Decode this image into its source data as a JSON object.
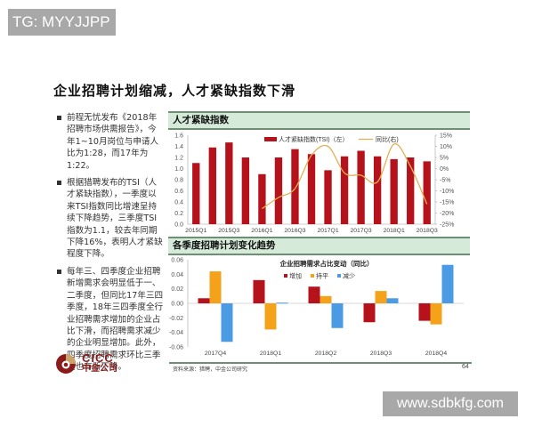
{
  "watermarks": {
    "top": "TG: MYYJJPP",
    "bottom": "www.sdbkfg.com"
  },
  "page": {
    "title": "企业招聘计划缩减，人才紧缺指数下滑",
    "bullets": [
      "前程无忧发布《2018年招聘市场供需报告》，今年1~10月岗位与申请人比为1:28，而17年为1:22。",
      "根据猎聘发布的TSI（人才紧缺指数），一季度以来TSI指数同比增速呈持续下降趋势，三季度TSI指数为1.1，较去年同期下降16%，表明人才紧缺程度下降。",
      "每年三、四季度企业招聘新增需求会明显低于一、二季度，但同比17年三四季度，18年三四季度全行业招聘需求增加的企业占比下滑，而招聘需求减少的企业明显增加。此外，四季度招聘需求环比三季度也有所下降。"
    ],
    "source": "资料来源：猎聘，中金公司研究",
    "page_number": "64",
    "logo": {
      "en": "CICC",
      "cn": "中金公司"
    }
  },
  "colors": {
    "red": "#b5121b",
    "orange": "#f5a21b",
    "blue": "#4a9be3",
    "line": "#e2b054",
    "panel_bg": "#d6ead9",
    "panel_border": "#6d8f73"
  },
  "chart_data": [
    {
      "type": "bar",
      "title": "人才紧缺指数",
      "categories": [
        "2015Q1",
        "2015Q2",
        "2015Q3",
        "2015Q4",
        "2016Q1",
        "2016Q2",
        "2016Q3",
        "2016Q4",
        "2017Q1",
        "2017Q2",
        "2017Q3",
        "2017Q4",
        "2018Q1",
        "2018Q2",
        "2018Q3"
      ],
      "x_tick_labels": [
        "2015Q1",
        "2015Q3",
        "2016Q1",
        "2016Q3",
        "2017Q1",
        "2017Q3",
        "2018Q1",
        "2018Q3"
      ],
      "series": [
        {
          "name": "人才紧缺指数(TSI)（左）",
          "type": "bar",
          "axis": "left",
          "values": [
            1.1,
            1.38,
            1.47,
            1.2,
            0.9,
            1.2,
            1.35,
            1.26,
            0.97,
            1.22,
            1.32,
            1.22,
            1.17,
            1.2,
            1.13
          ]
        },
        {
          "name": "同比(右)",
          "type": "line",
          "axis": "right",
          "unit": "%",
          "values": [
            null,
            null,
            null,
            null,
            -18,
            -13,
            -9,
            6,
            10,
            -2,
            -3,
            -6,
            11,
            1,
            -16
          ]
        }
      ],
      "y_left": {
        "ticks": [
          "1.6",
          "1.4",
          "1.2",
          "1.0",
          "0.8",
          "0.6",
          "0.4",
          "0.2",
          "0.0"
        ],
        "ylim": [
          0,
          1.6
        ]
      },
      "y_right": {
        "ticks": [
          "15%",
          "10%",
          "5%",
          "0%",
          "-5%",
          "-10%",
          "-15%",
          "-20%",
          "-25%"
        ],
        "ylim": [
          -25,
          15
        ]
      },
      "legend": [
        "人才紧缺指数(TSI)（左）",
        "同比(右)"
      ]
    },
    {
      "type": "bar",
      "title": "各季度招聘计划变化趋势",
      "subtitle": "企业招聘需求占比变动（同比）",
      "categories": [
        "2017Q4",
        "2018Q1",
        "2018Q2",
        "2018Q3",
        "2018Q4"
      ],
      "series": [
        {
          "name": "增加",
          "values": [
            0.007,
            0.032,
            0.023,
            -0.026,
            -0.024
          ]
        },
        {
          "name": "持平",
          "values": [
            0.044,
            -0.036,
            0.01,
            0.017,
            -0.029
          ]
        },
        {
          "name": "减少",
          "values": [
            -0.053,
            0.001,
            -0.034,
            0.007,
            0.053
          ]
        }
      ],
      "y": {
        "ticks": [
          "0.06",
          "0.04",
          "0.02",
          "0.00",
          "-0.02",
          "-0.04",
          "-0.06"
        ],
        "ylim": [
          -0.06,
          0.06
        ]
      },
      "legend": [
        "增加",
        "持平",
        "减少"
      ]
    }
  ]
}
